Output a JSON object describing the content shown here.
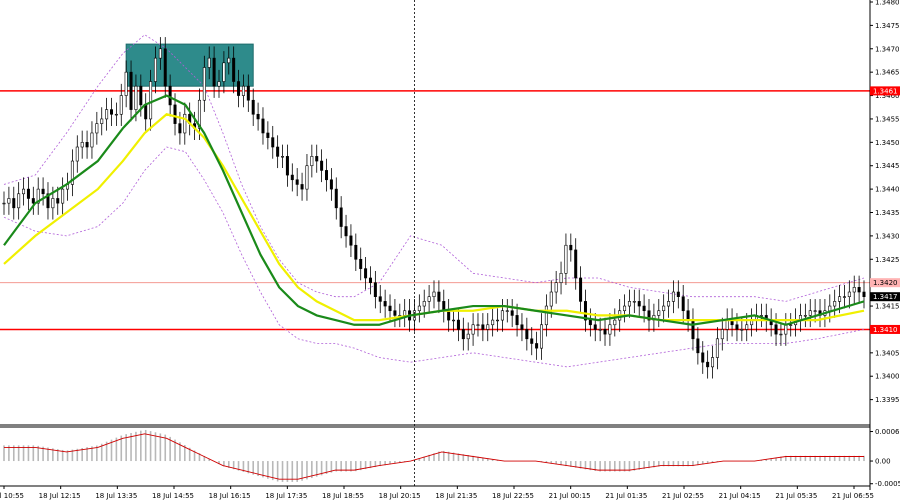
{
  "chart_data": {
    "type": "line",
    "subtype": "candlestick-with-indicators",
    "main_panel": {
      "y_ticks": [
        "1.3480",
        "1.3475",
        "1.3470",
        "1.3465",
        "1.3460",
        "1.3455",
        "1.3450",
        "1.3445",
        "1.3440",
        "1.3435",
        "1.3430",
        "1.3425",
        "1.3420",
        "1.3415",
        "1.3410",
        "1.3405",
        "1.3400",
        "1.3395"
      ],
      "ylim": [
        1.339,
        1.348
      ],
      "horizontal_levels": [
        {
          "value": 1.3461,
          "label": "1.3461",
          "color": "#ff0000",
          "style": "solid"
        },
        {
          "value": 1.342,
          "label": "1.3420",
          "color": "#f28b82",
          "style": "thin"
        },
        {
          "value": 1.3417,
          "label": "1.3417",
          "color": "#000000",
          "style": "price"
        },
        {
          "value": 1.341,
          "label": "1.3410",
          "color": "#ff0000",
          "style": "solid"
        }
      ],
      "highlight_box": {
        "label": "",
        "color": "#2e8b8b",
        "price_top": 1.3471,
        "price_bottom": 1.3462,
        "bar_from": 25,
        "bar_to": 51
      },
      "series": [
        {
          "key": "fast_ma",
          "color": "#1a8a1a",
          "x": [
            0,
            10,
            20,
            30,
            38,
            45,
            52,
            58,
            64,
            70,
            76,
            82,
            88,
            94,
            100,
            106,
            112,
            120,
            130,
            140,
            150,
            160,
            170,
            180,
            190,
            200,
            210,
            220,
            230,
            240,
            250,
            260,
            275
          ],
          "y": [
            1.3428,
            1.3437,
            1.3441,
            1.3446,
            1.3453,
            1.3458,
            1.346,
            1.3458,
            1.3452,
            1.3444,
            1.3435,
            1.3426,
            1.3419,
            1.3415,
            1.3413,
            1.3412,
            1.3411,
            1.3411,
            1.3413,
            1.3414,
            1.3415,
            1.3415,
            1.3414,
            1.3413,
            1.3412,
            1.3413,
            1.3412,
            1.3411,
            1.3412,
            1.3413,
            1.3411,
            1.3413,
            1.3416
          ]
        },
        {
          "key": "slow_ma",
          "color": "#f0f000",
          "x": [
            0,
            10,
            20,
            30,
            38,
            45,
            52,
            58,
            64,
            70,
            76,
            82,
            88,
            94,
            100,
            106,
            112,
            120,
            130,
            140,
            150,
            160,
            170,
            180,
            190,
            200,
            210,
            220,
            230,
            240,
            250,
            260,
            275
          ],
          "y": [
            1.3424,
            1.343,
            1.3435,
            1.344,
            1.3446,
            1.3452,
            1.3456,
            1.3455,
            1.3451,
            1.3445,
            1.3438,
            1.3431,
            1.3424,
            1.3419,
            1.3416,
            1.3414,
            1.3412,
            1.3412,
            1.3413,
            1.3414,
            1.3414,
            1.3415,
            1.3414,
            1.3414,
            1.3413,
            1.3413,
            1.3412,
            1.3412,
            1.3412,
            1.3412,
            1.3412,
            1.3412,
            1.3414
          ]
        },
        {
          "key": "bb_upper",
          "color": "#b05fd8",
          "x": [
            0,
            10,
            20,
            30,
            38,
            45,
            52,
            58,
            64,
            70,
            76,
            82,
            88,
            94,
            100,
            106,
            112,
            120,
            130,
            140,
            150,
            160,
            170,
            180,
            190,
            200,
            210,
            220,
            230,
            240,
            250,
            260,
            275
          ],
          "y": [
            1.3441,
            1.3443,
            1.3452,
            1.3462,
            1.3469,
            1.3473,
            1.347,
            1.3466,
            1.3462,
            1.3452,
            1.3441,
            1.3432,
            1.3425,
            1.342,
            1.3418,
            1.3417,
            1.3417,
            1.342,
            1.343,
            1.3428,
            1.3422,
            1.3421,
            1.342,
            1.3421,
            1.3421,
            1.3419,
            1.3418,
            1.3417,
            1.3417,
            1.3417,
            1.3416,
            1.3418,
            1.3421
          ]
        },
        {
          "key": "bb_lower",
          "color": "#b05fd8",
          "x": [
            0,
            10,
            20,
            30,
            38,
            45,
            52,
            58,
            64,
            70,
            76,
            82,
            88,
            94,
            100,
            106,
            112,
            120,
            130,
            140,
            150,
            160,
            170,
            180,
            190,
            200,
            210,
            220,
            230,
            240,
            250,
            260,
            275
          ],
          "y": [
            1.3434,
            1.3431,
            1.343,
            1.3432,
            1.3437,
            1.3444,
            1.3449,
            1.3448,
            1.3442,
            1.3435,
            1.3426,
            1.3418,
            1.3411,
            1.3408,
            1.3407,
            1.3407,
            1.3406,
            1.3404,
            1.3403,
            1.3404,
            1.3405,
            1.3404,
            1.3403,
            1.3402,
            1.3403,
            1.3404,
            1.3405,
            1.3406,
            1.3407,
            1.3407,
            1.3407,
            1.3408,
            1.341
          ]
        }
      ],
      "candles_close": [
        1.3437,
        1.3438,
        1.3436,
        1.3439,
        1.344,
        1.3438,
        1.3437,
        1.344,
        1.3439,
        1.3436,
        1.3438,
        1.3437,
        1.344,
        1.3441,
        1.3446,
        1.3449,
        1.345,
        1.3449,
        1.3452,
        1.3454,
        1.3455,
        1.3457,
        1.3456,
        1.3456,
        1.346,
        1.3465,
        1.3457,
        1.3462,
        1.3458,
        1.3455,
        1.3463,
        1.3468,
        1.347,
        1.3462,
        1.3458,
        1.3454,
        1.3452,
        1.3456,
        1.3454,
        1.3453,
        1.3459,
        1.3466,
        1.3468,
        1.3462,
        1.3463,
        1.3467,
        1.3468,
        1.3463,
        1.346,
        1.3462,
        1.3459,
        1.3456,
        1.3455,
        1.3452,
        1.3451,
        1.3449,
        1.3447,
        1.3447,
        1.3443,
        1.3442,
        1.3441,
        1.344,
        1.3445,
        1.3447,
        1.3446,
        1.3444,
        1.3442,
        1.344,
        1.3436,
        1.3432,
        1.343,
        1.3428,
        1.3425,
        1.3423,
        1.3421,
        1.342,
        1.3417,
        1.3416,
        1.3415,
        1.3414,
        1.3413,
        1.3413,
        1.3414,
        1.3412,
        1.3414,
        1.3415,
        1.3416,
        1.3417,
        1.3418,
        1.3416,
        1.3414,
        1.3412,
        1.3412,
        1.341,
        1.3408,
        1.3409,
        1.3411,
        1.3411,
        1.341,
        1.3411,
        1.3412,
        1.3412,
        1.3414,
        1.3414,
        1.3413,
        1.3411,
        1.341,
        1.3408,
        1.3407,
        1.3406,
        1.3411,
        1.3415,
        1.3418,
        1.342,
        1.3422,
        1.3428,
        1.3427,
        1.3421,
        1.3416,
        1.3412,
        1.3411,
        1.341,
        1.341,
        1.3409,
        1.3411,
        1.3412,
        1.3414,
        1.3415,
        1.3416,
        1.3416,
        1.3415,
        1.3414,
        1.3412,
        1.3413,
        1.3414,
        1.3415,
        1.3416,
        1.3418,
        1.3417,
        1.3414,
        1.3412,
        1.3408,
        1.3405,
        1.3403,
        1.3402,
        1.3404,
        1.3408,
        1.341,
        1.3412,
        1.3411,
        1.341,
        1.341,
        1.3411,
        1.3412,
        1.3413,
        1.3413,
        1.3412,
        1.3411,
        1.3409,
        1.3409,
        1.3411,
        1.3411,
        1.3412,
        1.3413,
        1.3413,
        1.3414,
        1.3414,
        1.3413,
        1.3414,
        1.3415,
        1.3416,
        1.3417,
        1.3417,
        1.3418,
        1.3419,
        1.3418,
        1.3417
      ]
    },
    "sub_panel": {
      "y_ticks": [
        "0.00065",
        "0.00",
        "-0.00050"
      ],
      "ylim": [
        -0.00055,
        0.00075
      ],
      "signal": {
        "color": "#d00000",
        "x": [
          0,
          10,
          20,
          30,
          38,
          45,
          52,
          58,
          64,
          70,
          76,
          82,
          88,
          94,
          100,
          106,
          112,
          120,
          130,
          140,
          150,
          160,
          170,
          180,
          190,
          200,
          210,
          220,
          230,
          240,
          250,
          260,
          275
        ],
        "y": [
          0.0003,
          0.0003,
          0.0002,
          0.0003,
          0.0005,
          0.0006,
          0.0005,
          0.0003,
          0.0001,
          -0.0001,
          -0.0002,
          -0.0003,
          -0.0004,
          -0.0004,
          -0.0003,
          -0.0002,
          -0.0002,
          -0.0001,
          0.0,
          0.0002,
          0.0001,
          0.0,
          0.0,
          -0.0001,
          -0.0002,
          -0.0002,
          -0.0001,
          -0.0001,
          0.0,
          0.0,
          0.0001,
          0.0001,
          0.0001
        ]
      }
    },
    "x_tick_labels": [
      "18 Jul 10:55",
      "18 Jul 12:15",
      "18 Jul 13:35",
      "18 Jul 14:55",
      "18 Jul 16:15",
      "18 Jul 17:35",
      "18 Jul 18:55",
      "18 Jul 20:15",
      "18 Jul 21:35",
      "18 Jul 22:55",
      "21 Jul 00:15",
      "21 Jul 01:35",
      "21 Jul 02:55",
      "21 Jul 04:15",
      "21 Jul 05:35",
      "21 Jul 06:55"
    ],
    "session_separator_label": "21 Jul 00:15"
  }
}
